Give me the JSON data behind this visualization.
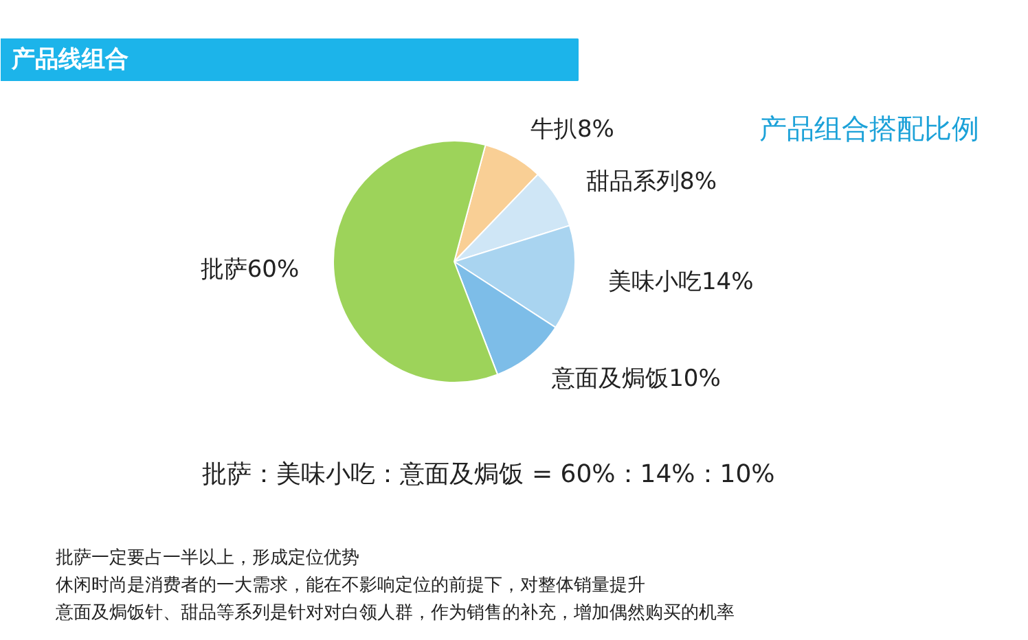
{
  "chart_data": {
    "type": "pie",
    "title": "产品线组合",
    "subtitle": "产品组合搭配比例",
    "categories": [
      "牛扒",
      "甜品系列",
      "美味小吃",
      "意面及焗饭",
      "批萨"
    ],
    "values": [
      8,
      8,
      14,
      10,
      60
    ],
    "colors": [
      "#f9cf95",
      "#cfe6f6",
      "#a9d4f0",
      "#7dbde8",
      "#9dd35a"
    ],
    "value_labels": [
      "8%",
      "8%",
      "14%",
      "10%",
      "60%"
    ],
    "annotations": [
      "批萨：美味小吃：意面及焗饭 = 60%：14%：10%",
      "批萨一定要占一半以上，形成定位优势",
      "休闲时尚是消费者的一大需求，能在不影响定位的前提下，对整体销量提升",
      "意面及焗饭针、甜品等系列是针对对白领人群，作为销售的补充，增加偶然购买的机率"
    ]
  }
}
